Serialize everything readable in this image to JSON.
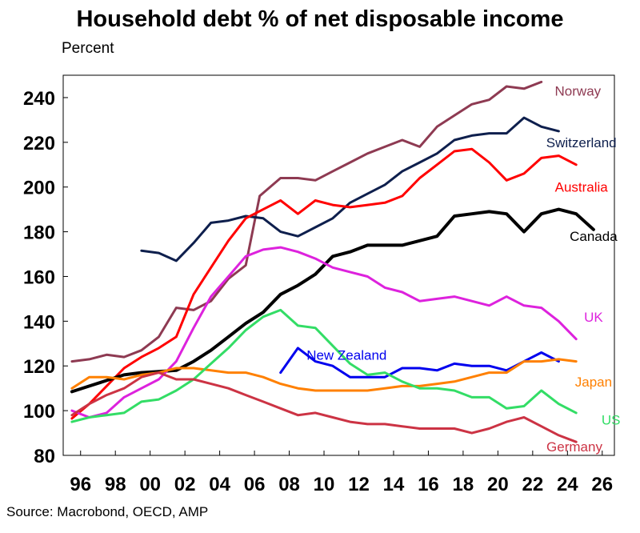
{
  "chart_data": {
    "type": "line",
    "title": "Household debt % of net disposable income",
    "unit_label": "Percent",
    "source": "Source: Macrobond, OECD, AMP",
    "xlim": [
      1995,
      2026.7
    ],
    "ylim": [
      80,
      250
    ],
    "y_ticks": [
      80,
      100,
      120,
      140,
      160,
      180,
      200,
      220,
      240
    ],
    "x_ticks": [
      {
        "value": 1996,
        "label": "96"
      },
      {
        "value": 1998,
        "label": "98"
      },
      {
        "value": 2000,
        "label": "00"
      },
      {
        "value": 2002,
        "label": "02"
      },
      {
        "value": 2004,
        "label": "04"
      },
      {
        "value": 2006,
        "label": "06"
      },
      {
        "value": 2008,
        "label": "08"
      },
      {
        "value": 2010,
        "label": "10"
      },
      {
        "value": 2012,
        "label": "12"
      },
      {
        "value": 2014,
        "label": "14"
      },
      {
        "value": 2016,
        "label": "16"
      },
      {
        "value": 2018,
        "label": "18"
      },
      {
        "value": 2020,
        "label": "20"
      },
      {
        "value": 2022,
        "label": "22"
      },
      {
        "value": 2024,
        "label": "24"
      },
      {
        "value": 2026,
        "label": "26"
      }
    ],
    "series": [
      {
        "name": "Norway",
        "color": "#8e3a52",
        "label_pos": [
          2024.6,
          243
        ],
        "x": [
          1995.5,
          1996.5,
          1997.5,
          1998.5,
          1999.5,
          2000.5,
          2001.5,
          2002.5,
          2003.5,
          2004.5,
          2005.5,
          2006.3,
          2007.5,
          2008.5,
          2009.5,
          2010.5,
          2011.5,
          2012.5,
          2013.5,
          2014.5,
          2015.5,
          2016.5,
          2017.5,
          2018.5,
          2019.5,
          2020.5,
          2021.5,
          2022.5
        ],
        "y": [
          122,
          123,
          125,
          124,
          127,
          133,
          146,
          145,
          149,
          159,
          165,
          196,
          204,
          204,
          203,
          207,
          211,
          215,
          218,
          221,
          218,
          227,
          232,
          237,
          239,
          245,
          244,
          247
        ]
      },
      {
        "name": "Switzerland",
        "color": "#0e1f4d",
        "label_pos": [
          2024.8,
          220
        ],
        "x": [
          1999.5,
          2000.5,
          2001.5,
          2002.5,
          2003.5,
          2004.5,
          2005.5,
          2006.5,
          2007.5,
          2008.5,
          2009.5,
          2010.5,
          2011.5,
          2012.5,
          2013.5,
          2014.5,
          2015.5,
          2016.5,
          2017.5,
          2018.5,
          2019.5,
          2020.5,
          2021.5,
          2022.5,
          2023.5
        ],
        "y": [
          171.5,
          170.5,
          167,
          175,
          184,
          185,
          187,
          186,
          180,
          178,
          182,
          186,
          193,
          197,
          201,
          207,
          211,
          215,
          221,
          223,
          224,
          224,
          231,
          227,
          225
        ]
      },
      {
        "name": "Australia",
        "color": "#ff0000",
        "label_pos": [
          2024.8,
          200
        ],
        "x": [
          1995.5,
          1996.5,
          1997.5,
          1998.5,
          1999.5,
          2000.5,
          2001.5,
          2002.5,
          2003.5,
          2004.5,
          2005.5,
          2006.5,
          2007.5,
          2008.5,
          2009.5,
          2010.5,
          2011.5,
          2012.5,
          2013.5,
          2014.5,
          2015.5,
          2016.5,
          2017.5,
          2018.5,
          2019.5,
          2020.5,
          2021.5,
          2022.5,
          2023.5,
          2024.5
        ],
        "y": [
          96.5,
          103,
          111,
          119,
          124,
          128,
          133,
          152,
          164,
          176,
          186,
          190,
          194,
          188,
          194,
          192,
          191,
          192,
          193,
          196,
          204,
          210,
          216,
          217,
          211,
          203,
          206,
          213,
          214,
          210
        ]
      },
      {
        "name": "Canada",
        "color": "#000000",
        "label_pos": [
          2025.5,
          178
        ],
        "x": [
          1995.5,
          1996.5,
          1997.5,
          1998.5,
          1999.5,
          2000.5,
          2001.5,
          2002.5,
          2003.5,
          2004.5,
          2005.5,
          2006.5,
          2007.5,
          2008.5,
          2009.5,
          2010.5,
          2011.5,
          2012.5,
          2013.5,
          2014.5,
          2015.5,
          2016.5,
          2017.5,
          2018.5,
          2019.5,
          2020.5,
          2021.5,
          2022.5,
          2023.5,
          2024.5,
          2025.5
        ],
        "y": [
          108.5,
          111,
          113.5,
          116,
          117,
          117.5,
          118,
          122,
          127,
          133,
          139,
          144,
          152,
          156,
          161,
          169,
          171,
          174,
          174,
          174,
          176,
          178,
          187,
          188,
          189,
          188,
          180,
          188,
          190,
          188,
          181
        ]
      },
      {
        "name": "UK",
        "color": "#dd22dd",
        "label_pos": [
          2025.5,
          142
        ],
        "x": [
          1995.5,
          1996.5,
          1997.5,
          1998.5,
          1999.5,
          2000.5,
          2001.5,
          2002.5,
          2003.5,
          2004.5,
          2005.5,
          2006.5,
          2007.5,
          2008.5,
          2009.5,
          2010.5,
          2011.5,
          2012.5,
          2013.5,
          2014.5,
          2015.5,
          2016.5,
          2017.5,
          2018.5,
          2019.5,
          2020.5,
          2021.5,
          2022.5,
          2023.5,
          2024.5
        ],
        "y": [
          100,
          97,
          99,
          106,
          110,
          114,
          122,
          137,
          151,
          160,
          169,
          172,
          173,
          171,
          168,
          164,
          162,
          160,
          155,
          153,
          149,
          150,
          151,
          149,
          147,
          151,
          147,
          146,
          140,
          132
        ]
      },
      {
        "name": "New Zealand",
        "color": "#0000ee",
        "label_pos": [
          2011.3,
          125
        ],
        "x": [
          2007.5,
          2008.5,
          2009.5,
          2010.5,
          2011.5,
          2012.5,
          2013.5,
          2014.5,
          2015.5,
          2016.5,
          2017.5,
          2018.5,
          2019.5,
          2020.5,
          2021.5,
          2022.5,
          2023.5
        ],
        "y": [
          117,
          128,
          122,
          120,
          115,
          115,
          115,
          119,
          119,
          118,
          121,
          120,
          120,
          118,
          122,
          126,
          122
        ]
      },
      {
        "name": "Japan",
        "color": "#ff8000",
        "label_pos": [
          2025.5,
          113
        ],
        "x": [
          1995.5,
          1996.5,
          1997.5,
          1998.5,
          1999.5,
          2000.5,
          2001.5,
          2002.5,
          2003.5,
          2004.5,
          2005.5,
          2006.5,
          2007.5,
          2008.5,
          2009.5,
          2010.5,
          2011.5,
          2012.5,
          2013.5,
          2014.5,
          2015.5,
          2016.5,
          2017.5,
          2018.5,
          2019.5,
          2020.5,
          2021.5,
          2022.5,
          2023.5,
          2024.5
        ],
        "y": [
          110,
          115,
          115,
          114,
          116,
          117,
          119,
          119,
          118,
          117,
          117,
          115,
          112,
          110,
          109,
          109,
          109,
          109,
          110,
          111,
          111,
          112,
          113,
          115,
          117,
          117,
          122,
          122,
          123,
          122
        ]
      },
      {
        "name": "US",
        "color": "#33dd66",
        "label_pos": [
          2026.5,
          96
        ],
        "x": [
          1995.5,
          1996.5,
          1997.5,
          1998.5,
          1999.5,
          2000.5,
          2001.5,
          2002.5,
          2003.5,
          2004.5,
          2005.5,
          2006.5,
          2007.5,
          2008.5,
          2009.5,
          2010.5,
          2011.5,
          2012.5,
          2013.5,
          2014.5,
          2015.5,
          2016.5,
          2017.5,
          2018.5,
          2019.5,
          2020.5,
          2021.5,
          2022.5,
          2023.5,
          2024.5
        ],
        "y": [
          95,
          97,
          98,
          99,
          104,
          105,
          109,
          114,
          121,
          128,
          136,
          142,
          145,
          138,
          137,
          129,
          121,
          116,
          117,
          113,
          110,
          110,
          109,
          106,
          106,
          101,
          102,
          109,
          103,
          99
        ]
      },
      {
        "name": "Germany",
        "color": "#cc3344",
        "label_pos": [
          2024.4,
          84
        ],
        "x": [
          1995.5,
          1996.5,
          1997.5,
          1998.5,
          1999.5,
          2000.5,
          2001.5,
          2002.5,
          2003.5,
          2004.5,
          2005.5,
          2006.5,
          2007.5,
          2008.5,
          2009.5,
          2010.5,
          2011.5,
          2012.5,
          2013.5,
          2014.5,
          2015.5,
          2016.5,
          2017.5,
          2018.5,
          2019.5,
          2020.5,
          2021.5,
          2022.5,
          2023.5,
          2024.5
        ],
        "y": [
          98,
          103,
          107,
          110,
          115,
          117,
          114,
          114,
          112,
          110,
          107,
          104,
          101,
          98,
          99,
          97,
          95,
          94,
          94,
          93,
          92,
          92,
          92,
          90,
          92,
          95,
          97,
          93,
          89,
          86
        ]
      }
    ]
  }
}
